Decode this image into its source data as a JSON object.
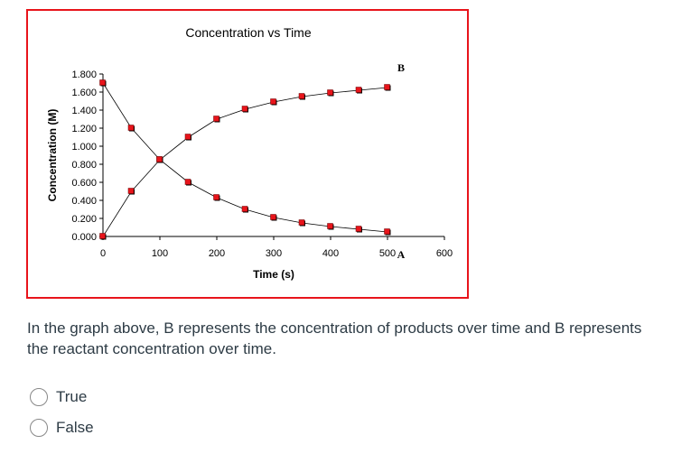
{
  "chart_data": {
    "type": "line",
    "title": "Concentration vs Time",
    "xlabel": "Time (s)",
    "ylabel": "Concentration (M)",
    "xlim": [
      0,
      600
    ],
    "ylim": [
      0,
      1.8
    ],
    "xticks": [
      "0",
      "100",
      "200",
      "300",
      "400",
      "500",
      "600"
    ],
    "yticks": [
      "0.000",
      "0.200",
      "0.400",
      "0.600",
      "0.800",
      "1.000",
      "1.200",
      "1.400",
      "1.600",
      "1.800"
    ],
    "x": [
      0,
      50,
      100,
      150,
      200,
      250,
      300,
      350,
      400,
      450,
      500
    ],
    "series": [
      {
        "name": "A",
        "values": [
          1.7,
          1.2,
          0.85,
          0.6,
          0.43,
          0.3,
          0.21,
          0.15,
          0.11,
          0.08,
          0.05
        ]
      },
      {
        "name": "B",
        "values": [
          0,
          0.5,
          0.85,
          1.1,
          1.3,
          1.41,
          1.49,
          1.55,
          1.59,
          1.62,
          1.65
        ]
      }
    ],
    "marker_color": "#e8141b",
    "grid": false
  },
  "question": {
    "text": "In the graph above, B represents the concentration of products over time and B represents the reactant concentration over time."
  },
  "options": [
    {
      "label": "True"
    },
    {
      "label": "False"
    }
  ]
}
